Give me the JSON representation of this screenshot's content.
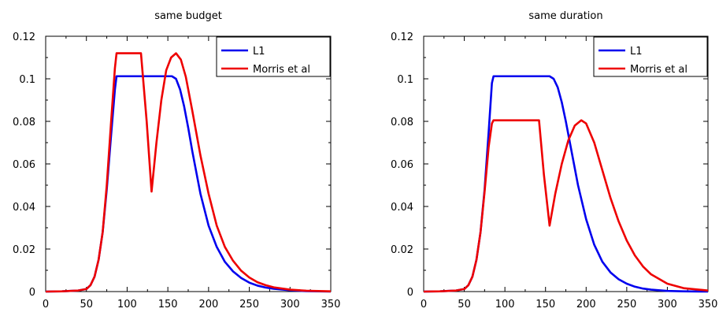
{
  "chart_data": [
    {
      "type": "line",
      "title": "same budget",
      "xlabel": "",
      "ylabel": "",
      "xlim": [
        0,
        350
      ],
      "ylim": [
        0,
        0.12
      ],
      "xticks": [
        0,
        50,
        100,
        150,
        200,
        250,
        300,
        350
      ],
      "yticks": [
        0,
        0.02,
        0.04,
        0.06,
        0.08,
        0.1,
        0.12
      ],
      "xtick_labels": [
        "0",
        "50",
        "100",
        "150",
        "200",
        "250",
        "300",
        "350"
      ],
      "ytick_labels": [
        "0",
        "0.02",
        "0.04",
        "0.06",
        "0.08",
        "0.1",
        "0.12"
      ],
      "legend": {
        "position": "top-right",
        "entries": [
          "L1",
          "Morris et al"
        ]
      },
      "grid": false,
      "series": [
        {
          "name": "L1",
          "color": "#0000ee",
          "x": [
            0,
            20,
            40,
            50,
            55,
            60,
            65,
            70,
            75,
            80,
            85,
            87,
            100,
            120,
            140,
            155,
            160,
            165,
            170,
            175,
            180,
            190,
            200,
            210,
            220,
            230,
            240,
            250,
            260,
            270,
            280,
            300,
            320,
            350
          ],
          "y": [
            0,
            0.0001,
            0.0005,
            0.0012,
            0.003,
            0.007,
            0.015,
            0.028,
            0.048,
            0.072,
            0.095,
            0.1012,
            0.1012,
            0.1012,
            0.1012,
            0.1012,
            0.1,
            0.095,
            0.087,
            0.077,
            0.066,
            0.046,
            0.031,
            0.021,
            0.014,
            0.0095,
            0.0064,
            0.0042,
            0.0028,
            0.0019,
            0.0013,
            0.0006,
            0.0002,
            0
          ]
        },
        {
          "name": "Morris et al",
          "color": "#ee0000",
          "x": [
            0,
            20,
            40,
            50,
            55,
            60,
            65,
            70,
            75,
            80,
            85,
            87,
            100,
            117,
            124,
            130,
            136,
            142,
            148,
            154,
            160,
            166,
            172,
            180,
            190,
            200,
            210,
            220,
            230,
            240,
            250,
            260,
            270,
            280,
            300,
            320,
            350
          ],
          "y": [
            0,
            0.0001,
            0.0005,
            0.0012,
            0.003,
            0.007,
            0.015,
            0.028,
            0.05,
            0.078,
            0.105,
            0.112,
            0.112,
            0.112,
            0.08,
            0.047,
            0.07,
            0.09,
            0.104,
            0.11,
            0.112,
            0.109,
            0.101,
            0.085,
            0.064,
            0.046,
            0.031,
            0.021,
            0.0145,
            0.0098,
            0.0066,
            0.0044,
            0.003,
            0.002,
            0.0009,
            0.0004,
            0.0001
          ]
        }
      ]
    },
    {
      "type": "line",
      "title": "same duration",
      "xlabel": "",
      "ylabel": "",
      "xlim": [
        0,
        350
      ],
      "ylim": [
        0,
        0.12
      ],
      "xticks": [
        0,
        50,
        100,
        150,
        200,
        250,
        300,
        350
      ],
      "yticks": [
        0,
        0.02,
        0.04,
        0.06,
        0.08,
        0.1,
        0.12
      ],
      "xtick_labels": [
        "0",
        "50",
        "100",
        "150",
        "200",
        "250",
        "300",
        "350"
      ],
      "ytick_labels": [
        "0",
        "0.02",
        "0.04",
        "0.06",
        "0.08",
        "0.1",
        "0.12"
      ],
      "legend": {
        "position": "top-right",
        "entries": [
          "L1",
          "Morris et al"
        ]
      },
      "grid": false,
      "series": [
        {
          "name": "L1",
          "color": "#0000ee",
          "x": [
            0,
            20,
            40,
            50,
            55,
            60,
            65,
            70,
            75,
            80,
            84,
            86,
            100,
            120,
            140,
            155,
            160,
            165,
            170,
            175,
            180,
            185,
            190,
            200,
            210,
            220,
            230,
            240,
            250,
            260,
            270,
            280,
            300,
            320,
            350
          ],
          "y": [
            0,
            0.0001,
            0.0005,
            0.0012,
            0.003,
            0.007,
            0.015,
            0.028,
            0.048,
            0.075,
            0.098,
            0.1012,
            0.1012,
            0.1012,
            0.1012,
            0.1012,
            0.1,
            0.096,
            0.089,
            0.08,
            0.07,
            0.06,
            0.05,
            0.034,
            0.022,
            0.014,
            0.009,
            0.0058,
            0.0037,
            0.0023,
            0.0014,
            0.0009,
            0.0003,
            0.0001,
            0
          ]
        },
        {
          "name": "Morris et al",
          "color": "#ee0000",
          "x": [
            0,
            20,
            40,
            50,
            55,
            60,
            65,
            70,
            75,
            80,
            84,
            86,
            100,
            120,
            142,
            148,
            155,
            162,
            170,
            178,
            186,
            194,
            200,
            210,
            220,
            230,
            240,
            250,
            260,
            270,
            280,
            300,
            320,
            350
          ],
          "y": [
            0,
            0.0001,
            0.0005,
            0.0012,
            0.003,
            0.007,
            0.015,
            0.028,
            0.047,
            0.068,
            0.079,
            0.0805,
            0.0805,
            0.0805,
            0.0805,
            0.055,
            0.031,
            0.046,
            0.06,
            0.071,
            0.078,
            0.0805,
            0.079,
            0.07,
            0.057,
            0.044,
            0.033,
            0.024,
            0.017,
            0.0118,
            0.0081,
            0.0037,
            0.0016,
            0.0005
          ]
        }
      ]
    }
  ]
}
